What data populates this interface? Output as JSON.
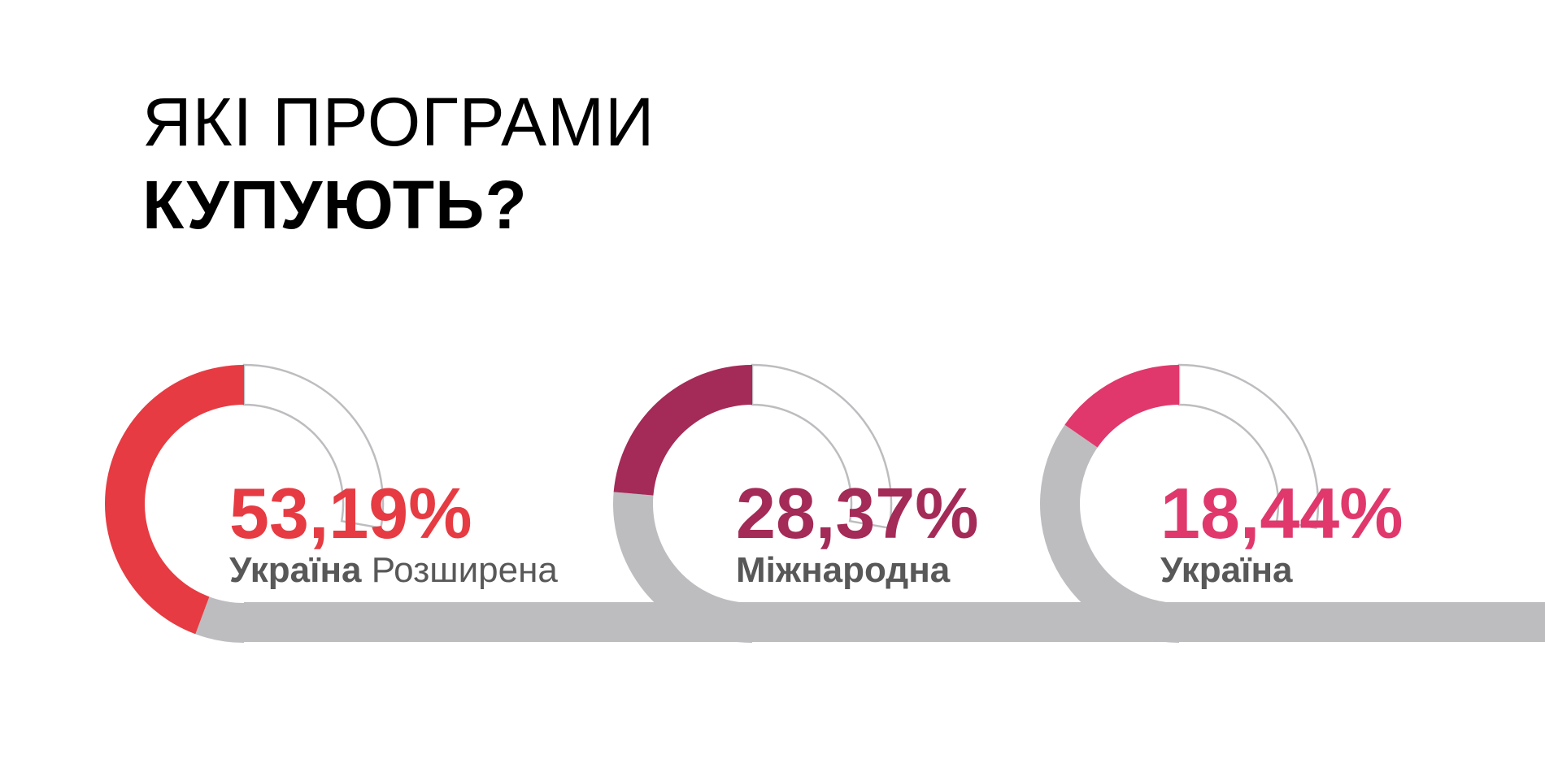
{
  "title": {
    "line1": "ЯКІ ПРОГРАМИ",
    "line2": "КУПУЮТЬ?"
  },
  "colors": {
    "track": "#bdbdc0",
    "outline": "#bdbdc0",
    "background": "#ffffff"
  },
  "chart_data": {
    "type": "pie",
    "title": "ЯКІ ПРОГРАМИ КУПУЮТЬ?",
    "unit": "%",
    "series": [
      {
        "value": 53.19,
        "value_label": "53,19%",
        "label_bold": "Україна",
        "label_regular": "Розширена",
        "color": "#e63b42"
      },
      {
        "value": 28.37,
        "value_label": "28,37%",
        "label_bold": "Міжнародна",
        "label_regular": "",
        "color": "#a42a57"
      },
      {
        "value": 18.44,
        "value_label": "18,44%",
        "label_bold": "Україна",
        "label_regular": "",
        "color": "#e0386c"
      }
    ]
  }
}
